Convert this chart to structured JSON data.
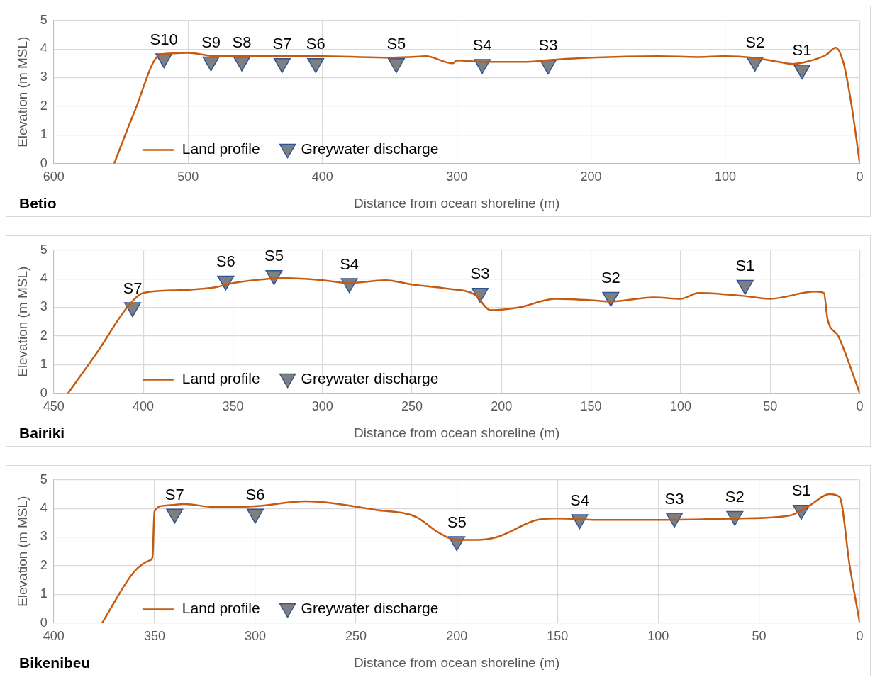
{
  "chart_data": [
    {
      "type": "line",
      "title": "Betio",
      "xlabel": "Distance from ocean shoreline (m)",
      "ylabel": "Elevation (m MSL)",
      "xlim": [
        600,
        0
      ],
      "xticks": [
        600,
        500,
        400,
        300,
        200,
        100,
        0
      ],
      "ylim": [
        0,
        5
      ],
      "yticks": [
        0,
        1,
        2,
        3,
        4,
        5
      ],
      "grid": true,
      "legend": "bottom left",
      "series": [
        {
          "name": "Land profile",
          "type": "line",
          "color": "#c55a11",
          "x": [
            555,
            540,
            521,
            510,
            500,
            480,
            450,
            400,
            350,
            335,
            323,
            303,
            300,
            280,
            250,
            230,
            200,
            150,
            120,
            100,
            80,
            60,
            50,
            40,
            25,
            18,
            12,
            6,
            0
          ],
          "values": [
            0,
            1.8,
            3.8,
            3.85,
            3.87,
            3.75,
            3.75,
            3.75,
            3.7,
            3.72,
            3.75,
            3.5,
            3.6,
            3.55,
            3.55,
            3.62,
            3.7,
            3.75,
            3.72,
            3.75,
            3.7,
            3.55,
            3.48,
            3.55,
            3.8,
            4.05,
            3.5,
            2,
            0
          ]
        },
        {
          "name": "Greywater discharge",
          "type": "scatter",
          "color": "#7f7f7f",
          "marker": "triangle",
          "x": [
            518,
            483,
            460,
            430,
            405,
            345,
            281,
            232,
            78,
            43
          ],
          "values": [
            3.67,
            3.56,
            3.56,
            3.5,
            3.5,
            3.5,
            3.47,
            3.45,
            3.55,
            3.28
          ]
        }
      ],
      "annotations": [
        {
          "text": "S10",
          "x": 518,
          "y": 3.67
        },
        {
          "text": "S9",
          "x": 483,
          "y": 3.56
        },
        {
          "text": "S8",
          "x": 460,
          "y": 3.56
        },
        {
          "text": "S7",
          "x": 430,
          "y": 3.5
        },
        {
          "text": "S6",
          "x": 405,
          "y": 3.5
        },
        {
          "text": "S5",
          "x": 345,
          "y": 3.5
        },
        {
          "text": "S4",
          "x": 281,
          "y": 3.47
        },
        {
          "text": "S3",
          "x": 232,
          "y": 3.45
        },
        {
          "text": "S2",
          "x": 78,
          "y": 3.55
        },
        {
          "text": "S1",
          "x": 43,
          "y": 3.28
        }
      ]
    },
    {
      "type": "line",
      "title": "Bairiki",
      "xlabel": "Distance from ocean shoreline (m)",
      "ylabel": "Elevation (m MSL)",
      "xlim": [
        450,
        0
      ],
      "xticks": [
        450,
        400,
        350,
        300,
        250,
        200,
        150,
        100,
        50,
        0
      ],
      "ylim": [
        0,
        5
      ],
      "yticks": [
        0,
        1,
        2,
        3,
        4,
        5
      ],
      "grid": true,
      "legend": "bottom left",
      "series": [
        {
          "name": "Land profile",
          "type": "line",
          "color": "#c55a11",
          "x": [
            442,
            425,
            409,
            400,
            380,
            360,
            350,
            330,
            320,
            300,
            285,
            265,
            250,
            230,
            215,
            206,
            190,
            170,
            150,
            140,
            115,
            100,
            90,
            65,
            50,
            25,
            20,
            18,
            12,
            0
          ],
          "values": [
            0,
            1.5,
            3,
            3.5,
            3.6,
            3.7,
            3.85,
            4,
            4.02,
            3.95,
            3.85,
            3.95,
            3.8,
            3.65,
            3.45,
            2.9,
            3,
            3.3,
            3.25,
            3.2,
            3.35,
            3.3,
            3.5,
            3.4,
            3.3,
            3.55,
            3.5,
            2.6,
            2,
            0
          ]
        },
        {
          "name": "Greywater discharge",
          "type": "scatter",
          "color": "#7f7f7f",
          "marker": "triangle",
          "x": [
            406,
            354,
            327,
            285,
            212,
            139,
            64
          ],
          "values": [
            3,
            3.93,
            4.12,
            3.84,
            3.5,
            3.36,
            3.78
          ]
        }
      ],
      "annotations": [
        {
          "text": "S7",
          "x": 406,
          "y": 3
        },
        {
          "text": "S6",
          "x": 354,
          "y": 3.93
        },
        {
          "text": "S5",
          "x": 327,
          "y": 4.12
        },
        {
          "text": "S4",
          "x": 285,
          "y": 3.84
        },
        {
          "text": "S3",
          "x": 212,
          "y": 3.5
        },
        {
          "text": "S2",
          "x": 139,
          "y": 3.36
        },
        {
          "text": "S1",
          "x": 64,
          "y": 3.78
        }
      ]
    },
    {
      "type": "line",
      "title": "Bikenibeu",
      "xlabel": "Distance from ocean shoreline (m)",
      "ylabel": "Elevation (m MSL)",
      "xlim": [
        400,
        0
      ],
      "xticks": [
        400,
        350,
        300,
        250,
        200,
        150,
        100,
        50,
        0
      ],
      "ylim": [
        0,
        5
      ],
      "yticks": [
        0,
        1,
        2,
        3,
        4,
        5
      ],
      "grid": true,
      "legend": "bottom left",
      "series": [
        {
          "name": "Land profile",
          "type": "line",
          "color": "#c55a11",
          "x": [
            376,
            360,
            352,
            351,
            350,
            345,
            335,
            320,
            300,
            275,
            240,
            220,
            210,
            200,
            190,
            180,
            160,
            150,
            130,
            100,
            60,
            35,
            25,
            15,
            10,
            5,
            0
          ],
          "values": [
            0,
            1.8,
            2.2,
            2.3,
            3.9,
            4.1,
            4.15,
            4.05,
            4.08,
            4.25,
            3.95,
            3.7,
            3.2,
            2.9,
            2.9,
            3,
            3.6,
            3.65,
            3.6,
            3.6,
            3.65,
            3.75,
            4.1,
            4.5,
            4.4,
            2,
            0
          ]
        },
        {
          "name": "Greywater discharge",
          "type": "scatter",
          "color": "#7f7f7f",
          "marker": "triangle",
          "x": [
            340,
            300,
            200,
            139,
            92,
            62,
            29
          ],
          "values": [
            3.81,
            3.81,
            2.85,
            3.62,
            3.67,
            3.73,
            3.95
          ]
        }
      ],
      "annotations": [
        {
          "text": "S7",
          "x": 340,
          "y": 3.81
        },
        {
          "text": "S6",
          "x": 300,
          "y": 3.81
        },
        {
          "text": "S5",
          "x": 200,
          "y": 2.85
        },
        {
          "text": "S4",
          "x": 139,
          "y": 3.62
        },
        {
          "text": "S3",
          "x": 92,
          "y": 3.67
        },
        {
          "text": "S2",
          "x": 62,
          "y": 3.73
        },
        {
          "text": "S1",
          "x": 29,
          "y": 3.95
        }
      ]
    }
  ]
}
